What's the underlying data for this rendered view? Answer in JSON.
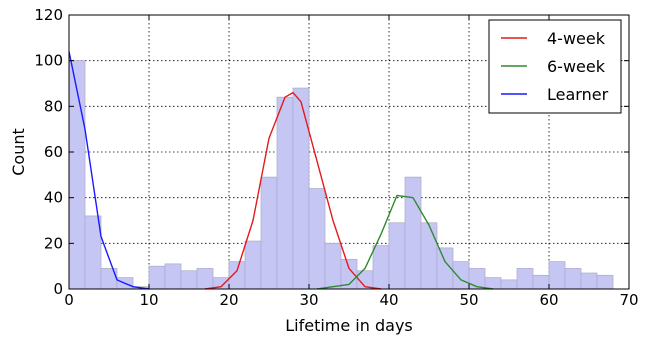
{
  "chart_data": {
    "type": "bar",
    "title": "",
    "xlabel": "Lifetime in days",
    "ylabel": "Count",
    "xlim": [
      0,
      70
    ],
    "ylim": [
      0,
      120
    ],
    "xticks": [
      0,
      10,
      20,
      30,
      40,
      50,
      60,
      70
    ],
    "yticks": [
      0,
      20,
      40,
      60,
      80,
      100,
      120
    ],
    "grid": true,
    "legend_position": "top-right",
    "histogram": {
      "bin_width": 2,
      "bin_starts": [
        0,
        2,
        4,
        6,
        8,
        10,
        12,
        14,
        16,
        18,
        20,
        22,
        24,
        26,
        28,
        30,
        32,
        34,
        36,
        38,
        40,
        42,
        44,
        46,
        48,
        50,
        52,
        54,
        56,
        58,
        60,
        62,
        64,
        66,
        68
      ],
      "counts": [
        100,
        32,
        9,
        5,
        1,
        10,
        11,
        8,
        9,
        5,
        12,
        21,
        49,
        84,
        88,
        44,
        20,
        13,
        8,
        19,
        29,
        49,
        29,
        18,
        12,
        9,
        5,
        4,
        9,
        6,
        12,
        9,
        7,
        6,
        0
      ],
      "color": "#c6c6f5"
    },
    "series": [
      {
        "name": "4-week",
        "color": "#e41a1c",
        "x": [
          17,
          19,
          21,
          23,
          25,
          27,
          28,
          29,
          31,
          33,
          35,
          37,
          39
        ],
        "y": [
          0,
          1,
          8,
          30,
          66,
          84,
          86,
          82,
          56,
          30,
          9,
          1,
          0
        ]
      },
      {
        "name": "6-week",
        "color": "#2e8b2e",
        "x": [
          31,
          33,
          35,
          37,
          39,
          41,
          43,
          45,
          47,
          49,
          51,
          53
        ],
        "y": [
          0,
          1,
          2,
          9,
          24,
          41,
          40,
          28,
          12,
          4,
          1,
          0
        ]
      },
      {
        "name": "Learner",
        "color": "#1a1aff",
        "x": [
          0,
          2,
          4,
          6,
          8,
          10
        ],
        "y": [
          104,
          70,
          23,
          4,
          1,
          0
        ]
      }
    ]
  }
}
